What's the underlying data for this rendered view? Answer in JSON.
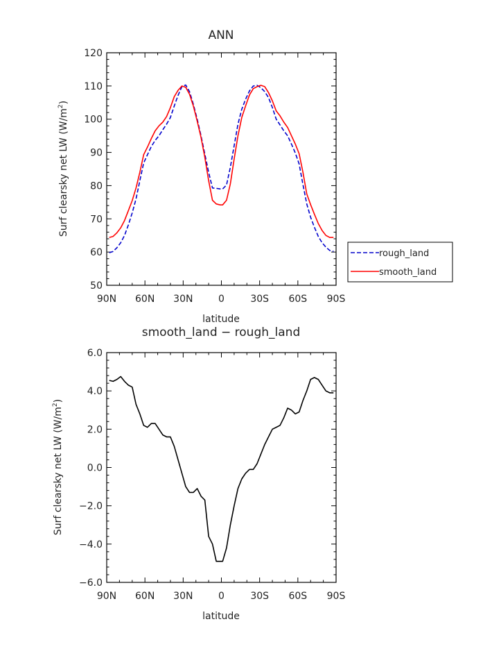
{
  "chart_data": [
    {
      "type": "line",
      "title": "ANN",
      "xlabel": "latitude",
      "ylabel": "Surf clearsky net LW (W/m",
      "ylabel_sup": "2",
      "ylabel_tail": ")",
      "xlim": [
        -90,
        90
      ],
      "ylim": [
        50,
        120
      ],
      "x_ticks": [
        -90,
        -60,
        -30,
        0,
        30,
        60,
        90
      ],
      "x_tick_labels": [
        "90N",
        "60N",
        "30N",
        "0",
        "30S",
        "60S",
        "90S"
      ],
      "y_ticks": [
        50,
        60,
        70,
        80,
        90,
        100,
        110,
        120
      ],
      "y_tick_labels": [
        "50",
        "60",
        "70",
        "80",
        "90",
        "100",
        "110",
        "120"
      ],
      "grid": false,
      "legend_position": "right",
      "x": [
        -88,
        -85,
        -82,
        -79,
        -76,
        -73,
        -70,
        -67,
        -64,
        -61,
        -58,
        -55,
        -52,
        -49,
        -46,
        -43,
        -40,
        -37,
        -34,
        -31,
        -28,
        -25,
        -22,
        -19,
        -16,
        -13,
        -10,
        -7,
        -4,
        -1,
        1,
        4,
        7,
        10,
        13,
        16,
        19,
        22,
        25,
        28,
        31,
        34,
        37,
        40,
        43,
        46,
        49,
        52,
        55,
        58,
        61,
        64,
        67,
        70,
        73,
        76,
        79,
        82,
        85,
        88
      ],
      "series": [
        {
          "name": "rough_land",
          "color": "#0000cc",
          "dash": true,
          "values": [
            59.8,
            60.2,
            61.3,
            62.8,
            65,
            68.2,
            71.8,
            76,
            81.5,
            86.8,
            89.3,
            91.8,
            93.6,
            95,
            96.8,
            98.5,
            100.5,
            104,
            107.2,
            109.8,
            110.3,
            108.3,
            104.5,
            100,
            95,
            89.5,
            84,
            79.3,
            79.2,
            79,
            79,
            80.2,
            85.5,
            92,
            98.5,
            103,
            106,
            108.5,
            110,
            110.2,
            109.5,
            108.3,
            106.5,
            103.5,
            100,
            98.3,
            96.5,
            95,
            92.5,
            89.8,
            86.5,
            80.3,
            74.5,
            70.5,
            67.5,
            64.7,
            62.8,
            61.5,
            60.5,
            60.2
          ]
        },
        {
          "name": "smooth_land",
          "color": "#ff0000",
          "dash": false,
          "values": [
            64.4,
            64.7,
            65.8,
            67.3,
            69.5,
            72.5,
            75.5,
            79.3,
            84,
            89.3,
            91.6,
            94.2,
            96.5,
            98,
            99.1,
            100.8,
            103.5,
            106.8,
            108.7,
            110,
            109.6,
            107.5,
            104,
            99.4,
            94.5,
            88.5,
            81.5,
            75.6,
            74.5,
            74.2,
            74.2,
            75.6,
            80.5,
            88,
            95,
            100.5,
            104,
            107.3,
            109.2,
            109.8,
            110.2,
            109.8,
            108,
            105.5,
            102.5,
            101,
            99.1,
            97.5,
            95,
            92.5,
            89.6,
            84,
            77.5,
            74.3,
            71.4,
            68.6,
            66.5,
            65,
            64.4,
            64.4
          ]
        }
      ]
    },
    {
      "type": "line",
      "title": "smooth_land − rough_land",
      "xlabel": "latitude",
      "ylabel": "Surf clearsky net LW (W/m",
      "ylabel_sup": "2",
      "ylabel_tail": ")",
      "xlim": [
        -90,
        90
      ],
      "ylim": [
        -6,
        6
      ],
      "x_ticks": [
        -90,
        -60,
        -30,
        0,
        30,
        60,
        90
      ],
      "x_tick_labels": [
        "90N",
        "60N",
        "30N",
        "0",
        "30S",
        "60S",
        "90S"
      ],
      "y_ticks": [
        -6,
        -4,
        -2,
        0,
        2,
        4,
        6
      ],
      "y_tick_labels": [
        "−6.0",
        "−4.0",
        "−2.0",
        "0.0",
        "2.0",
        "4.0",
        "6.0"
      ],
      "grid": false,
      "x": [
        -88,
        -85,
        -82,
        -79,
        -76,
        -73,
        -70,
        -67,
        -64,
        -61,
        -58,
        -55,
        -52,
        -49,
        -46,
        -43,
        -40,
        -37,
        -34,
        -31,
        -28,
        -25,
        -22,
        -19,
        -16,
        -13,
        -10,
        -7,
        -4,
        -1,
        1,
        4,
        7,
        10,
        13,
        16,
        19,
        22,
        25,
        28,
        31,
        34,
        37,
        40,
        43,
        46,
        49,
        52,
        55,
        58,
        61,
        64,
        67,
        70,
        73,
        76,
        79,
        82,
        85,
        88
      ],
      "series": [
        {
          "color": "#000000",
          "dash": false,
          "values": [
            4.55,
            4.5,
            4.6,
            4.75,
            4.5,
            4.3,
            4.2,
            3.3,
            2.8,
            2.2,
            2.1,
            2.3,
            2.3,
            2,
            1.7,
            1.6,
            1.6,
            1.1,
            0.4,
            -0.3,
            -1,
            -1.3,
            -1.3,
            -1.1,
            -1.5,
            -1.7,
            -3.6,
            -4,
            -4.9,
            -4.9,
            -4.9,
            -4.2,
            -3,
            -2,
            -1.1,
            -0.6,
            -0.3,
            -0.1,
            -0.1,
            0.2,
            0.7,
            1.2,
            1.6,
            2,
            2.1,
            2.2,
            2.6,
            3.1,
            3,
            2.8,
            2.9,
            3.5,
            4,
            4.6,
            4.7,
            4.6,
            4.3,
            4,
            3.9,
            3.9
          ]
        }
      ]
    }
  ]
}
